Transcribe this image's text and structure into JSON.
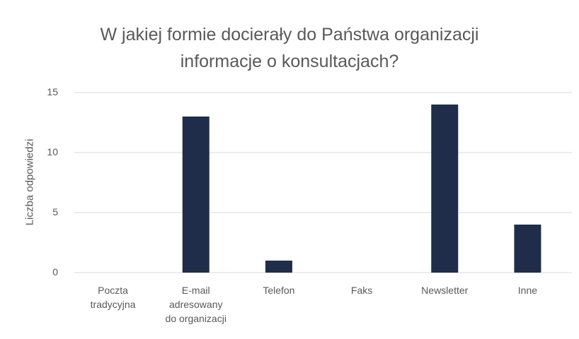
{
  "chart_data": {
    "type": "bar",
    "title": "W jakiej formie docierały do Państwa organizacji informacje o konsultacjach?",
    "y_label": "Liczba odpowiedzi",
    "categories": [
      "Poczta tradycyjna",
      "E-mail adresowany do organizacji",
      "Telefon",
      "Faks",
      "Newsletter",
      "Inne"
    ],
    "values": [
      0,
      13,
      1,
      0,
      14,
      4
    ],
    "color": "#1f2d4a",
    "ylim": [
      0,
      15
    ],
    "yticks": [
      0,
      5,
      10,
      15
    ],
    "grid": true
  }
}
